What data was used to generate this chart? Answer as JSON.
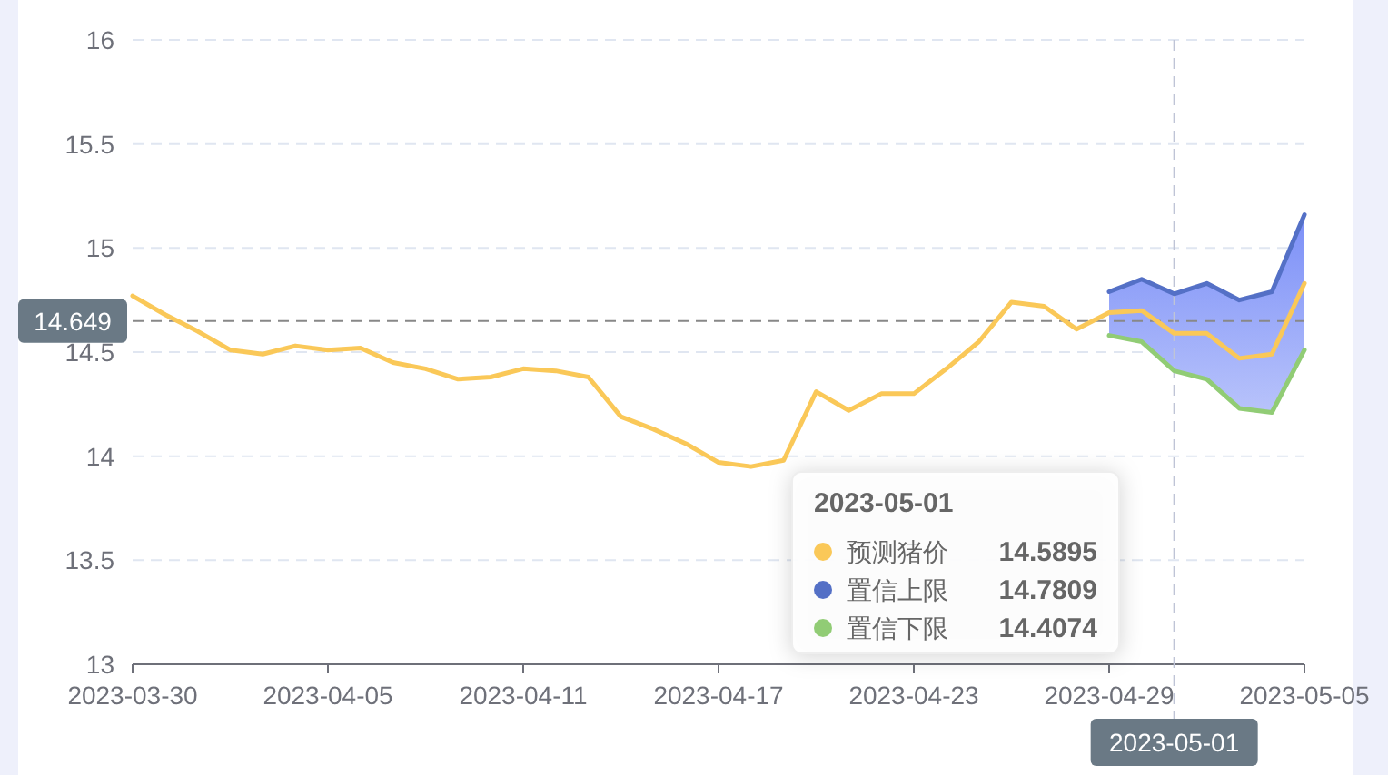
{
  "chart_data": {
    "type": "line",
    "x": [
      "2023-03-30",
      "2023-03-31",
      "2023-04-01",
      "2023-04-02",
      "2023-04-03",
      "2023-04-04",
      "2023-04-05",
      "2023-04-06",
      "2023-04-07",
      "2023-04-08",
      "2023-04-09",
      "2023-04-10",
      "2023-04-11",
      "2023-04-12",
      "2023-04-13",
      "2023-04-14",
      "2023-04-15",
      "2023-04-16",
      "2023-04-17",
      "2023-04-18",
      "2023-04-19",
      "2023-04-20",
      "2023-04-21",
      "2023-04-22",
      "2023-04-23",
      "2023-04-24",
      "2023-04-25",
      "2023-04-26",
      "2023-04-27",
      "2023-04-28",
      "2023-04-29",
      "2023-04-30",
      "2023-05-01",
      "2023-05-02",
      "2023-05-03",
      "2023-05-04",
      "2023-05-05"
    ],
    "series": [
      {
        "name": "预测猪价",
        "color": "#fac858",
        "values": [
          14.77,
          14.68,
          14.6,
          14.51,
          14.49,
          14.53,
          14.51,
          14.52,
          14.45,
          14.42,
          14.37,
          14.38,
          14.42,
          14.41,
          14.38,
          14.19,
          14.13,
          14.06,
          13.97,
          13.95,
          13.98,
          14.31,
          14.22,
          14.3,
          14.3,
          14.42,
          14.55,
          14.74,
          14.72,
          14.61,
          14.69,
          14.7,
          14.59,
          14.59,
          14.47,
          14.49,
          14.83
        ],
        "lower": [
          null,
          null,
          null,
          null,
          null,
          null,
          null,
          null,
          null,
          null,
          null,
          null,
          null,
          null,
          null,
          null,
          null,
          null,
          null,
          null,
          null,
          null,
          null,
          null,
          null,
          null,
          null,
          null,
          null,
          null,
          14.58,
          14.55,
          14.41,
          14.37,
          14.23,
          14.21,
          14.51
        ],
        "upper": [
          null,
          null,
          null,
          null,
          null,
          null,
          null,
          null,
          null,
          null,
          null,
          null,
          null,
          null,
          null,
          null,
          null,
          null,
          null,
          null,
          null,
          null,
          null,
          null,
          null,
          null,
          null,
          null,
          null,
          null,
          14.79,
          14.85,
          14.78,
          14.83,
          14.75,
          14.79,
          15.16
        ]
      },
      {
        "name": "置信上限",
        "color": "#5470c6",
        "x": [
          "2023-04-29",
          "2023-04-30",
          "2023-05-01",
          "2023-05-02",
          "2023-05-03",
          "2023-05-04",
          "2023-05-05"
        ],
        "values": [
          14.79,
          14.85,
          14.78,
          14.83,
          14.75,
          14.79,
          15.16
        ]
      },
      {
        "name": "置信下限",
        "color": "#91cc75",
        "x": [
          "2023-04-29",
          "2023-04-30",
          "2023-05-01",
          "2023-05-02",
          "2023-05-03",
          "2023-05-04",
          "2023-05-05"
        ],
        "values": [
          14.58,
          14.55,
          14.41,
          14.37,
          14.23,
          14.21,
          14.51
        ]
      }
    ],
    "xlim": [
      "2023-03-30",
      "2023-05-05"
    ],
    "xticks": [
      "2023-03-30",
      "2023-04-05",
      "2023-04-11",
      "2023-04-17",
      "2023-04-23",
      "2023-04-29",
      "2023-05-05"
    ],
    "ylim": [
      13,
      16
    ],
    "yticks": [
      13,
      13.5,
      14,
      14.5,
      15,
      15.5,
      16
    ],
    "grid": "y",
    "marker": "none",
    "line_style": "solid",
    "legend": "bottom",
    "ref_lines": [
      {
        "axis": "y",
        "value": 14.649,
        "label": "14.649",
        "color": "#888888",
        "line_style": "dashed"
      },
      {
        "axis": "x",
        "value": "2023-05-01",
        "label": "2023-05-01",
        "color": "#bfc4d6",
        "line_style": "dashed"
      }
    ],
    "annotations": [
      "2023-05-01",
      "14.5895",
      "14.7809",
      "14.4074"
    ]
  }
}
